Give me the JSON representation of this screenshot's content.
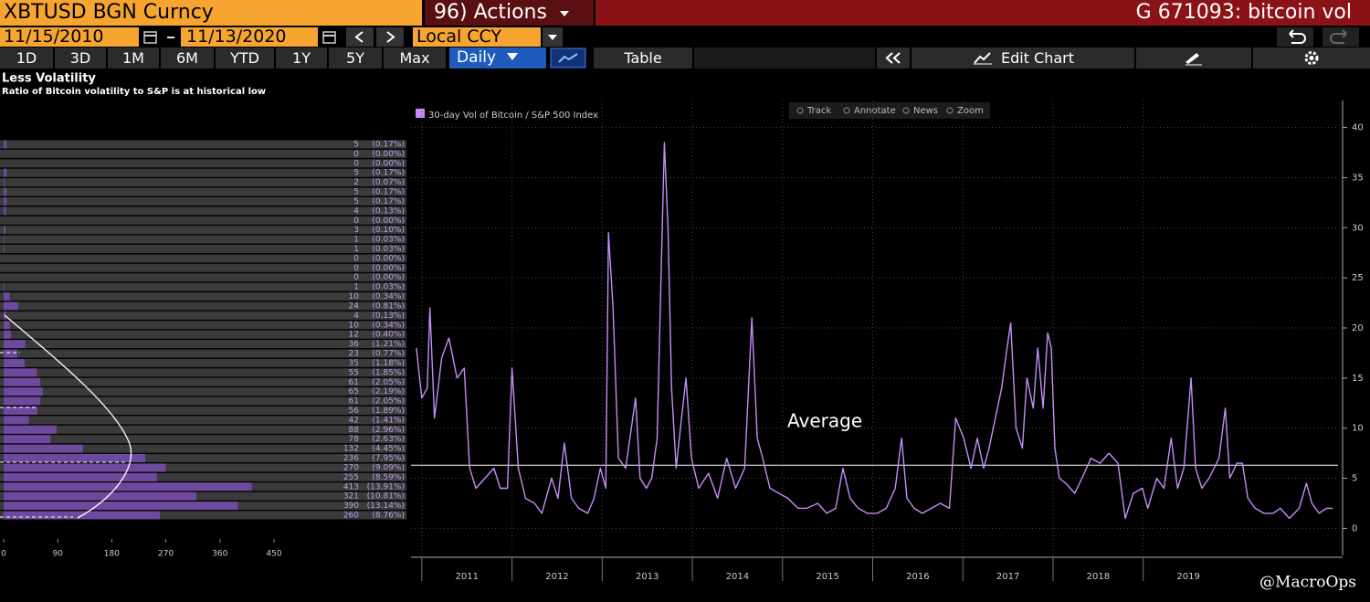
{
  "toolbar": {
    "security": "XBTUSD BGN Curncy",
    "actions": "96) Actions",
    "chart_id": "G 671093: bitcoin vol",
    "start_date": "11/15/2010",
    "end_date": "11/13/2020",
    "currency": "Local CCY",
    "periods": [
      "1D",
      "3D",
      "1M",
      "6M",
      "YTD",
      "1Y",
      "5Y",
      "Max"
    ],
    "frequency": "Daily",
    "table": "Table",
    "edit_chart": "Edit Chart"
  },
  "chart_tools": [
    "Track",
    "Annotate",
    "News",
    "Zoom"
  ],
  "watermark": "@MacroOps",
  "chart_data": [
    {
      "type": "hbar",
      "title": "Less Volatility",
      "subtitle": "Ratio of Bitcoin volatility to S&P is at historical low",
      "values": [
        5,
        0,
        0,
        5,
        2,
        5,
        5,
        4,
        0,
        3,
        1,
        1,
        0,
        0,
        0,
        1,
        10,
        24,
        4,
        10,
        12,
        36,
        23,
        35,
        55,
        61,
        65,
        61,
        56,
        42,
        88,
        78,
        132,
        236,
        270,
        255,
        413,
        321,
        390,
        260
      ],
      "share_labels": [
        "(0.17%)",
        "(0.00%)",
        "(0.00%)",
        "(0.17%)",
        "(0.07%)",
        "(0.17%)",
        "(0.17%)",
        "(0.13%)",
        "(0.00%)",
        "(0.10%)",
        "(0.03%)",
        "(0.03%)",
        "(0.00%)",
        "(0.00%)",
        "(0.00%)",
        "(0.03%)",
        "(0.34%)",
        "(0.81%)",
        "(0.13%)",
        "(0.34%)",
        "(0.40%)",
        "(1.21%)",
        "(0.77%)",
        "(1.18%)",
        "(1.85%)",
        "(2.05%)",
        "(2.19%)",
        "(2.05%)",
        "(1.89%)",
        "(1.41%)",
        "(2.96%)",
        "(2.63%)",
        "(4.45%)",
        "(7.95%)",
        "(9.09%)",
        "(8.59%)",
        "(13.91%)",
        "(10.81%)",
        "(13.14%)",
        "(8.76%)"
      ],
      "color": "#6e4a9e",
      "xlim": [
        0,
        450
      ],
      "xticks": [
        0,
        90,
        180,
        270,
        360,
        450
      ]
    },
    {
      "type": "line",
      "x": [
        2010.94,
        2011.0,
        2011.06,
        2011.09,
        2011.14,
        2011.22,
        2011.3,
        2011.39,
        2011.47,
        2011.53,
        2011.6,
        2011.7,
        2011.8,
        2011.87,
        2011.95,
        2012.0,
        2012.07,
        2012.15,
        2012.25,
        2012.33,
        2012.44,
        2012.51,
        2012.58,
        2012.66,
        2012.74,
        2012.84,
        2012.91,
        2012.98,
        2013.04,
        2013.07,
        2013.12,
        2013.18,
        2013.26,
        2013.37,
        2013.42,
        2013.49,
        2013.55,
        2013.61,
        2013.65,
        2013.69,
        2013.73,
        2013.77,
        2013.82,
        2013.88,
        2013.93,
        2013.99,
        2014.07,
        2014.18,
        2014.28,
        2014.38,
        2014.48,
        2014.58,
        2014.66,
        2014.72,
        2014.78,
        2014.86,
        2014.96,
        2015.06,
        2015.17,
        2015.27,
        2015.39,
        2015.49,
        2015.59,
        2015.67,
        2015.75,
        2015.84,
        2015.94,
        2016.05,
        2016.15,
        2016.25,
        2016.32,
        2016.38,
        2016.46,
        2016.55,
        2016.65,
        2016.75,
        2016.85,
        2016.92,
        2017.01,
        2017.09,
        2017.16,
        2017.23,
        2017.29,
        2017.36,
        2017.43,
        2017.49,
        2017.53,
        2017.59,
        2017.66,
        2017.71,
        2017.78,
        2017.83,
        2017.89,
        2017.94,
        2017.98,
        2018.02,
        2018.07,
        2018.14,
        2018.24,
        2018.32,
        2018.42,
        2018.52,
        2018.62,
        2018.72,
        2018.8,
        2018.89,
        2018.99,
        2019.05,
        2019.15,
        2019.23,
        2019.31,
        2019.38,
        2019.45,
        2019.53,
        2019.58,
        2019.65,
        2019.73,
        2019.84,
        2019.91,
        2019.96,
        2020.04,
        2020.1,
        2020.16,
        2020.24,
        2020.34,
        2020.44,
        2020.52,
        2020.62,
        2020.73,
        2020.81,
        2020.87,
        2020.95,
        2021.03,
        2021.1
      ],
      "series": [
        {
          "name": "30-day Vol of Bitcoin / S&P 500 Index",
          "color": "#c58df5",
          "values": [
            18,
            13,
            14,
            22,
            11,
            17,
            19,
            15,
            16,
            6,
            4,
            5,
            6,
            4,
            4,
            16,
            6,
            3,
            2.5,
            1.5,
            5,
            3,
            8.5,
            3,
            2,
            1.5,
            3,
            6,
            4,
            29.5,
            22,
            7,
            6,
            13,
            5,
            4,
            5,
            9,
            24,
            38.5,
            30,
            14,
            6,
            11,
            15,
            7,
            4,
            5.5,
            3,
            7,
            4,
            6,
            21,
            9,
            7,
            4,
            3.5,
            3,
            2,
            2,
            2.5,
            1.5,
            2,
            6,
            3,
            2,
            1.5,
            1.5,
            2,
            4,
            9,
            3,
            2,
            1.5,
            2,
            2.5,
            2,
            11,
            9,
            6,
            9,
            6,
            8,
            11,
            14,
            18,
            20.5,
            10,
            8,
            15,
            12,
            18,
            12,
            19.5,
            18,
            8,
            5,
            4.5,
            3.5,
            5,
            7,
            6.5,
            7.5,
            6.5,
            1,
            3.5,
            4,
            2,
            5,
            4,
            9,
            4,
            6,
            15,
            6,
            4,
            5,
            7,
            12,
            5,
            6.5,
            6.5,
            3,
            2,
            1.5,
            1.5,
            2,
            1,
            2,
            4.5,
            2.5,
            1.5,
            2,
            2
          ]
        }
      ],
      "xlim": [
        2010.88,
        2021.16
      ],
      "xticks": [
        2011,
        2012,
        2013,
        2014,
        2015,
        2016,
        2017,
        2018,
        2019
      ],
      "ylim": [
        -2.7,
        42.7
      ],
      "yticks": [
        0,
        5,
        10,
        15,
        20,
        25,
        30,
        35,
        40
      ],
      "grid": true,
      "reference_line": {
        "value": 6.3,
        "label": "Average",
        "color": "#ffffff"
      }
    }
  ]
}
